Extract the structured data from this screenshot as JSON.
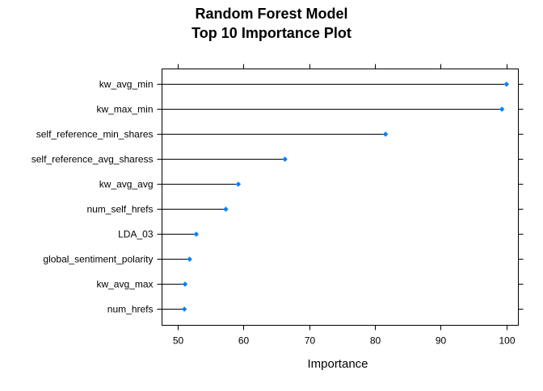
{
  "chart_data": {
    "type": "dot",
    "title_lines": [
      "Random Forest Model",
      "Top 10 Importance Plot"
    ],
    "xlabel": "Importance",
    "ylabel": "",
    "xlim": [
      47.6,
      101.8
    ],
    "xticks": [
      50,
      60,
      70,
      80,
      90,
      100
    ],
    "categories": [
      "kw_avg_min",
      "kw_max_min",
      "self_reference_min_shares",
      "self_reference_avg_sharess",
      "kw_avg_avg",
      "num_self_hrefs",
      "LDA_03",
      "global_sentiment_polarity",
      "kw_avg_max",
      "num_hrefs"
    ],
    "values": [
      100.0,
      99.3,
      81.6,
      66.3,
      59.2,
      57.3,
      52.8,
      51.8,
      51.1,
      51.0
    ],
    "grid": false,
    "legend": "none",
    "colors": {
      "point": "#0080ff",
      "line": "#000000",
      "axis": "#000000"
    }
  }
}
